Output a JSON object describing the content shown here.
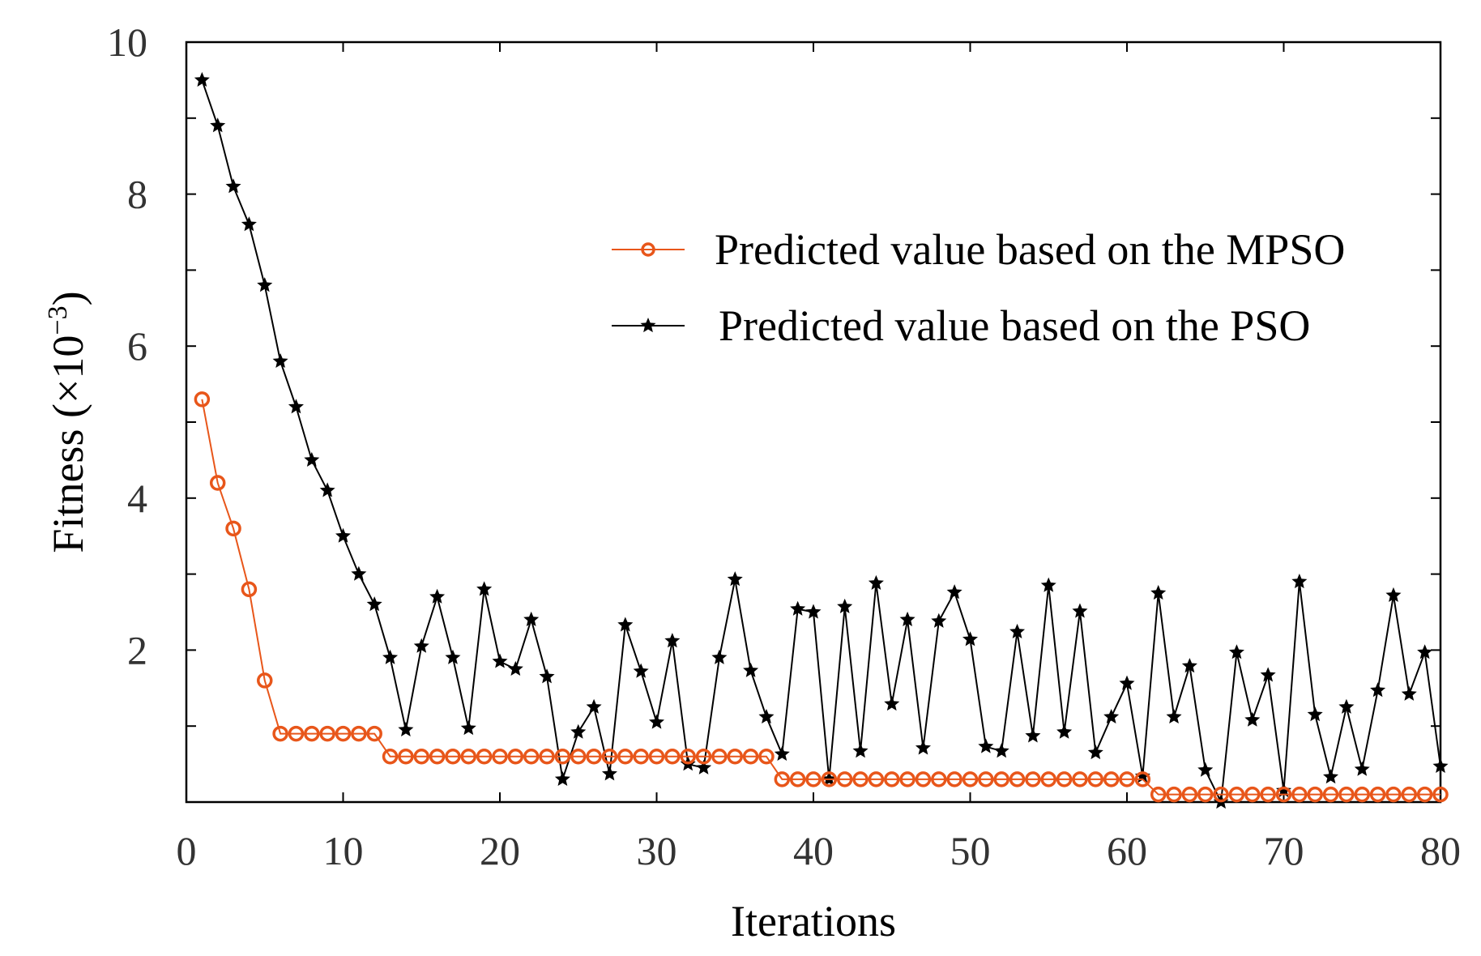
{
  "chart_data": {
    "type": "line",
    "title": "",
    "xlabel": "Iterations",
    "ylabel": "Fitness",
    "ylabel_unit_prefix": "(×10",
    "ylabel_exponent": "−3",
    "ylabel_unit_suffix": ")",
    "xlim": [
      0,
      80
    ],
    "ylim": [
      0,
      10
    ],
    "xticks": [
      0,
      10,
      20,
      30,
      40,
      50,
      60,
      70,
      80
    ],
    "yticks_labeled": [
      2,
      4,
      6,
      8,
      10
    ],
    "yticks_minor": [
      1,
      3,
      5,
      7,
      9
    ],
    "grid": false,
    "legend_position": "upper-right",
    "x": [
      1,
      2,
      3,
      4,
      5,
      6,
      7,
      8,
      9,
      10,
      11,
      12,
      13,
      14,
      15,
      16,
      17,
      18,
      19,
      20,
      21,
      22,
      23,
      24,
      25,
      26,
      27,
      28,
      29,
      30,
      31,
      32,
      33,
      34,
      35,
      36,
      37,
      38,
      39,
      40,
      41,
      42,
      43,
      44,
      45,
      46,
      47,
      48,
      49,
      50,
      51,
      52,
      53,
      54,
      55,
      56,
      57,
      58,
      59,
      60,
      61,
      62,
      63,
      64,
      65,
      66,
      67,
      68,
      69,
      70,
      71,
      72,
      73,
      74,
      75,
      76,
      77,
      78,
      79,
      80
    ],
    "series": [
      {
        "name": "Predicted value based on the MPSO",
        "color": "#e8561a",
        "marker": "circle",
        "values": [
          5.3,
          4.2,
          3.6,
          2.8,
          1.6,
          0.9,
          0.9,
          0.9,
          0.9,
          0.9,
          0.9,
          0.9,
          0.6,
          0.6,
          0.6,
          0.6,
          0.6,
          0.6,
          0.6,
          0.6,
          0.6,
          0.6,
          0.6,
          0.6,
          0.6,
          0.6,
          0.6,
          0.6,
          0.6,
          0.6,
          0.6,
          0.6,
          0.6,
          0.6,
          0.6,
          0.6,
          0.6,
          0.3,
          0.3,
          0.3,
          0.3,
          0.3,
          0.3,
          0.3,
          0.3,
          0.3,
          0.3,
          0.3,
          0.3,
          0.3,
          0.3,
          0.3,
          0.3,
          0.3,
          0.3,
          0.3,
          0.3,
          0.3,
          0.3,
          0.3,
          0.3,
          0.1,
          0.1,
          0.1,
          0.1,
          0.1,
          0.1,
          0.1,
          0.1,
          0.1,
          0.1,
          0.1,
          0.1,
          0.1,
          0.1,
          0.1,
          0.1,
          0.1,
          0.1,
          0.1
        ]
      },
      {
        "name": "Predicted value based on the PSO",
        "color": "#000000",
        "marker": "star",
        "values": [
          9.5,
          8.9,
          8.1,
          7.6,
          6.8,
          5.8,
          5.2,
          4.5,
          4.1,
          3.5,
          3.0,
          2.6,
          1.9,
          0.95,
          2.05,
          2.7,
          1.9,
          0.97,
          2.8,
          1.85,
          1.75,
          2.4,
          1.65,
          0.3,
          0.92,
          1.25,
          0.37,
          2.33,
          1.72,
          1.05,
          2.12,
          0.5,
          0.45,
          1.9,
          2.93,
          1.73,
          1.12,
          0.63,
          2.54,
          2.5,
          0.3,
          2.57,
          0.67,
          2.88,
          1.29,
          2.4,
          0.71,
          2.38,
          2.76,
          2.14,
          0.73,
          0.67,
          2.24,
          0.87,
          2.85,
          0.92,
          2.51,
          0.65,
          1.12,
          1.56,
          0.34,
          2.75,
          1.12,
          1.79,
          0.42,
          0.0,
          1.97,
          1.08,
          1.67,
          0.15,
          2.9,
          1.15,
          0.33,
          1.25,
          0.43,
          1.47,
          2.72,
          1.42,
          1.97,
          0.47
        ]
      }
    ]
  }
}
